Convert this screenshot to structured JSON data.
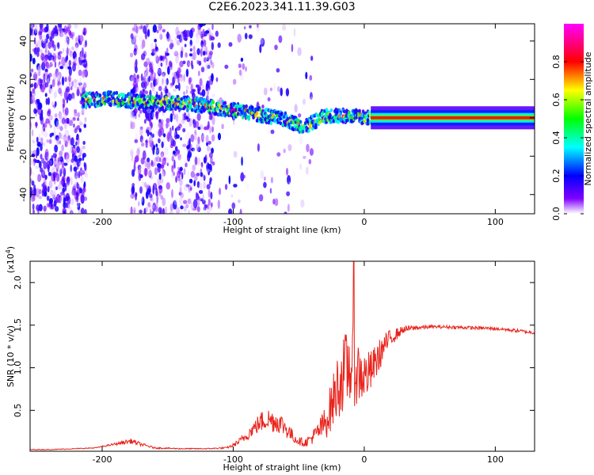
{
  "title": "C2E6.2023.341.11.39.G03",
  "chart_data": [
    {
      "type": "heatmap",
      "title": "C2E6.2023.341.11.39.G03",
      "xlabel": "Height of straight line (km)",
      "ylabel": "Frequency (Hz)",
      "xlim": [
        -255,
        130
      ],
      "ylim": [
        -50,
        49
      ],
      "x_ticks": [
        -200,
        -100,
        0,
        100
      ],
      "y_ticks": [
        -40,
        -20,
        0,
        20,
        40
      ],
      "colorbar": {
        "label": "Normalized spectral amplitude",
        "range": [
          0,
          1
        ],
        "ticks": [
          0.0,
          0.2,
          0.4,
          0.6,
          0.8
        ],
        "colors": [
          "#ffffff",
          "#8000ff",
          "#0000ff",
          "#00ffff",
          "#00ff00",
          "#ffff00",
          "#ff0000",
          "#ff00ff"
        ]
      },
      "ridge": {
        "x": [
          -215,
          -195,
          -180,
          -170,
          -150,
          -130,
          -110,
          -90,
          -75,
          -60,
          -45,
          -38,
          -30,
          -20,
          -10,
          0,
          10,
          50,
          100,
          130
        ],
        "y": [
          9,
          10,
          9,
          8,
          8,
          7,
          5,
          3,
          1,
          -1,
          -5,
          -2,
          1,
          1,
          1,
          0,
          0,
          0,
          0,
          0
        ]
      }
    },
    {
      "type": "line",
      "xlabel": "Height of straight line (km)",
      "ylabel": "SNR (10 * v/v)",
      "y_multiplier": "(x10",
      "y_multiplier_exp": "4",
      "y_multiplier_close": ")",
      "xlim": [
        -255,
        130
      ],
      "ylim": [
        0.02,
        2.25
      ],
      "x_ticks": [
        -200,
        -100,
        0,
        100
      ],
      "y_ticks": [
        0.5,
        1.0,
        1.5,
        2.0
      ],
      "y_tick_labels": [
        "0.5",
        "1.0",
        "1.5",
        "2.0"
      ],
      "series": [
        {
          "color": "#e8241c",
          "x": [
            -255,
            -240,
            -220,
            -205,
            -195,
            -185,
            -178,
            -170,
            -160,
            -140,
            -120,
            -105,
            -100,
            -95,
            -90,
            -85,
            -80,
            -75,
            -70,
            -65,
            -60,
            -55,
            -50,
            -45,
            -40,
            -35,
            -30,
            -25,
            -20,
            -15,
            -10,
            -5,
            0,
            5,
            10,
            15,
            20,
            25,
            30,
            40,
            50,
            60,
            80,
            100,
            120,
            130
          ],
          "y": [
            0.04,
            0.04,
            0.05,
            0.06,
            0.09,
            0.12,
            0.14,
            0.1,
            0.06,
            0.05,
            0.05,
            0.06,
            0.09,
            0.14,
            0.2,
            0.28,
            0.35,
            0.4,
            0.38,
            0.36,
            0.3,
            0.2,
            0.14,
            0.12,
            0.18,
            0.25,
            0.35,
            0.55,
            0.8,
            0.95,
            1.05,
            0.95,
            0.9,
            0.95,
            1.1,
            1.25,
            1.35,
            1.4,
            1.45,
            1.47,
            1.48,
            1.48,
            1.47,
            1.46,
            1.43,
            1.41
          ],
          "noise": [
            0.004,
            0.004,
            0.005,
            0.006,
            0.01,
            0.02,
            0.03,
            0.02,
            0.01,
            0.006,
            0.006,
            0.01,
            0.02,
            0.04,
            0.06,
            0.08,
            0.12,
            0.14,
            0.14,
            0.13,
            0.12,
            0.08,
            0.05,
            0.05,
            0.08,
            0.12,
            0.2,
            0.3,
            0.4,
            0.45,
            0.5,
            0.4,
            0.3,
            0.25,
            0.2,
            0.15,
            0.1,
            0.07,
            0.04,
            0.03,
            0.02,
            0.02,
            0.02,
            0.02,
            0.02,
            0.02
          ],
          "peak": {
            "x": -8,
            "y": 2.25
          }
        }
      ]
    }
  ]
}
